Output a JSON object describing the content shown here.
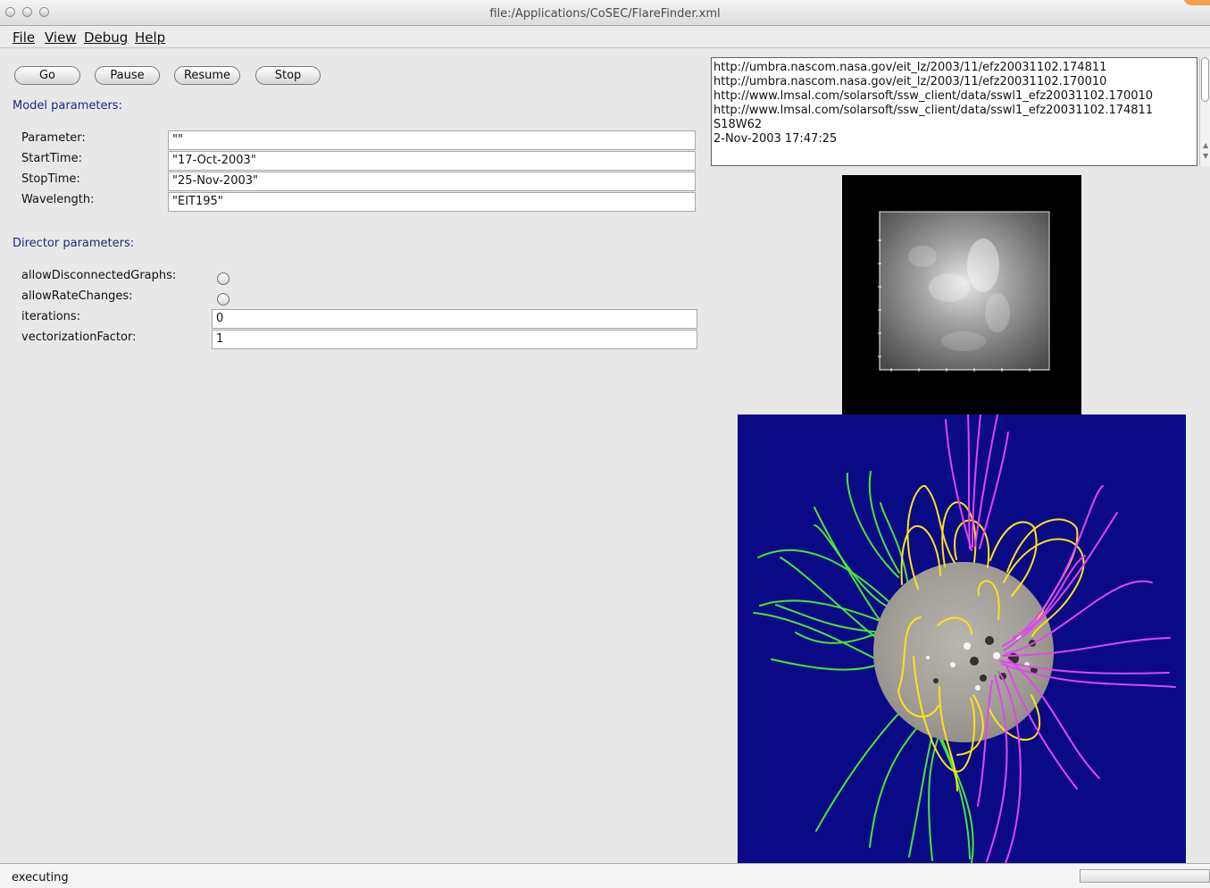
{
  "window": {
    "title": "file:/Applications/CoSEC/FlareFinder.xml"
  },
  "menubar": {
    "items": [
      {
        "label": "File",
        "name": "menu-file"
      },
      {
        "label": "View",
        "name": "menu-view"
      },
      {
        "label": "Debug",
        "name": "menu-debug"
      },
      {
        "label": "Help",
        "name": "menu-help"
      }
    ]
  },
  "toolbar": {
    "go_label": "Go",
    "pause_label": "Pause",
    "resume_label": "Resume",
    "stop_label": "Stop"
  },
  "model_parameters": {
    "title": "Model parameters:",
    "rows": [
      {
        "label": "Parameter:",
        "value": "\"\""
      },
      {
        "label": "StartTime:",
        "value": "\"17-Oct-2003\""
      },
      {
        "label": "StopTime:",
        "value": "\"25-Nov-2003\""
      },
      {
        "label": "Wavelength:",
        "value": "\"EIT195\""
      }
    ]
  },
  "director_parameters": {
    "title": "Director parameters:",
    "allow_disconnected_label": "allowDisconnectedGraphs:",
    "allow_rate_label": "allowRateChanges:",
    "iterations_label": "iterations:",
    "iterations_value": "0",
    "vectorization_label": "vectorizationFactor:",
    "vectorization_value": "1"
  },
  "output": {
    "lines": [
      "http://umbra.nascom.nasa.gov/eit_lz/2003/11/efz20031102.174811",
      "http://umbra.nascom.nasa.gov/eit_lz/2003/11/efz20031102.170010",
      "http://www.lmsal.com/solarsoft/ssw_client/data/sswl1_efz20031102.170010",
      "http://www.lmsal.com/solarsoft/ssw_client/data/sswl1_efz20031102.174811",
      "S18W62",
      "2-Nov-2003 17:47:25"
    ]
  },
  "images": {
    "eit_icon": "solar-eit-image-icon",
    "magnetic_field_icon": "magnetic-field-lines-icon"
  },
  "status": {
    "text": "executing"
  },
  "colors": {
    "field_background": "#0b0a86",
    "section_text": "#1b2a7e",
    "green_lines": "#48e53a",
    "yellow_lines": "#ffe11a",
    "magenta_lines": "#e245f1"
  }
}
